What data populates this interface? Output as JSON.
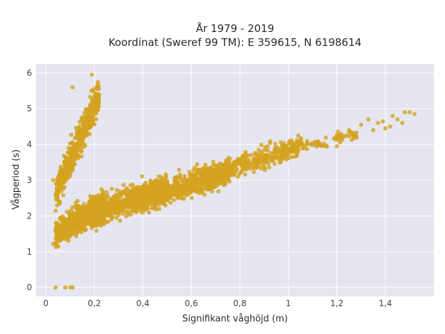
{
  "chart_data": {
    "type": "scatter",
    "title_line1": "År 1979 - 2019",
    "title_line2": "Koordinat (Sweref 99 TM): E 359615, N 6198614",
    "xlabel": "Signifikant våghöjd (m)",
    "ylabel": "Vågperiod (s)",
    "xlim": [
      -0.04,
      1.6
    ],
    "ylim": [
      -0.25,
      6.25
    ],
    "x_ticks": [
      0,
      0.2,
      0.4,
      0.6,
      0.8,
      1.0,
      1.2,
      1.4
    ],
    "x_tick_labels": [
      "0",
      "0,2",
      "0,4",
      "0,6",
      "0,8",
      "1",
      "1,2",
      "1,4"
    ],
    "y_ticks": [
      0,
      1,
      2,
      3,
      4,
      5,
      6
    ],
    "y_tick_labels": [
      "0",
      "1",
      "2",
      "3",
      "4",
      "5",
      "6"
    ],
    "grid": true,
    "marker_color": "#d4a21f",
    "plot_background": "#e5e6ef",
    "clusters": [
      {
        "x_range": [
          0.04,
          0.24
        ],
        "y_center": [
          1.5,
          2.3
        ],
        "y_spread": 0.35,
        "count": 550
      },
      {
        "x_range": [
          0.12,
          0.5
        ],
        "y_center": [
          1.9,
          2.8
        ],
        "y_spread": 0.4,
        "count": 700
      },
      {
        "x_range": [
          0.35,
          0.75
        ],
        "y_center": [
          2.4,
          3.2
        ],
        "y_spread": 0.35,
        "count": 550
      },
      {
        "x_range": [
          0.6,
          1.05
        ],
        "y_center": [
          3.0,
          3.95
        ],
        "y_spread": 0.28,
        "count": 450
      },
      {
        "x_range": [
          1.0,
          1.3
        ],
        "y_center": [
          3.9,
          4.3
        ],
        "y_spread": 0.18,
        "count": 90
      },
      {
        "x_range": [
          0.04,
          0.22
        ],
        "y_center": [
          2.6,
          5.4
        ],
        "y_spread": 0.45,
        "count": 500
      },
      {
        "x_range": [
          0.22,
          0.72
        ],
        "y_center": [
          2.15,
          2.9
        ],
        "y_spread": 0.1,
        "count": 160
      }
    ],
    "outliers": [
      {
        "x": 0.04,
        "y": 0.0
      },
      {
        "x": 0.08,
        "y": 0.0
      },
      {
        "x": 0.1,
        "y": 0.0
      },
      {
        "x": 0.11,
        "y": 0.0
      },
      {
        "x": 0.19,
        "y": 5.95
      },
      {
        "x": 0.11,
        "y": 5.6
      },
      {
        "x": 0.03,
        "y": 3.0
      },
      {
        "x": 0.03,
        "y": 1.22
      },
      {
        "x": 0.04,
        "y": 1.25
      },
      {
        "x": 1.2,
        "y": 3.95
      },
      {
        "x": 1.25,
        "y": 4.4
      },
      {
        "x": 1.3,
        "y": 4.55
      },
      {
        "x": 1.33,
        "y": 4.7
      },
      {
        "x": 1.35,
        "y": 4.4
      },
      {
        "x": 1.37,
        "y": 4.6
      },
      {
        "x": 1.39,
        "y": 4.65
      },
      {
        "x": 1.4,
        "y": 4.45
      },
      {
        "x": 1.42,
        "y": 4.5
      },
      {
        "x": 1.43,
        "y": 4.8
      },
      {
        "x": 1.45,
        "y": 4.7
      },
      {
        "x": 1.47,
        "y": 4.6
      },
      {
        "x": 1.48,
        "y": 4.9
      },
      {
        "x": 1.5,
        "y": 4.9
      },
      {
        "x": 1.52,
        "y": 4.85
      }
    ]
  }
}
